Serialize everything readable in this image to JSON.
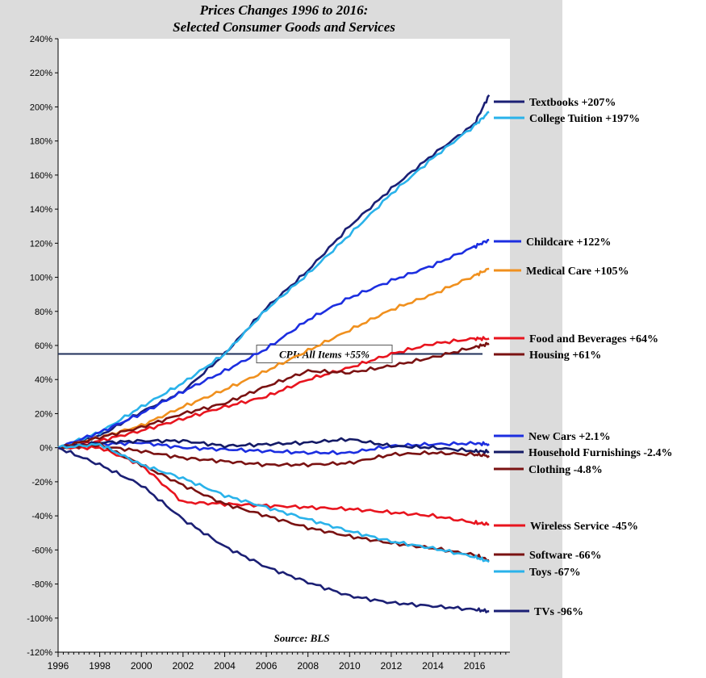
{
  "chart_data": {
    "type": "line",
    "title_line1": "Prices Changes 1996 to 2016:",
    "title_line2": "Selected Consumer Goods and Services",
    "source": "Source: BLS",
    "xlabel": "",
    "ylabel": "",
    "xlim": [
      1996,
      2017.7
    ],
    "ylim": [
      -120,
      240
    ],
    "y_ticks": [
      240,
      220,
      200,
      180,
      160,
      140,
      120,
      100,
      80,
      60,
      40,
      20,
      0,
      -20,
      -40,
      -60,
      -80,
      -100,
      -120
    ],
    "y_tick_labels": [
      "240%",
      "220%",
      "200%",
      "180%",
      "160%",
      "140%",
      "120%",
      "100%",
      "80%",
      "60%",
      "40%",
      "20%",
      "0%",
      "-20%",
      "-40%",
      "-60%",
      "-80%",
      "-100%",
      "-120%"
    ],
    "x_ticks": [
      1996,
      1998,
      2000,
      2002,
      2004,
      2006,
      2008,
      2010,
      2012,
      2014,
      2016
    ],
    "x_tick_labels": [
      "1996",
      "1998",
      "2000",
      "2002",
      "2004",
      "2006",
      "2008",
      "2010",
      "2012",
      "2014",
      "2016"
    ],
    "reference_line": {
      "label": "CPI: All Items +55%",
      "value": 55,
      "color": "#1f2f5a"
    },
    "series": [
      {
        "name": "Textbooks",
        "label": "Textbooks +207%",
        "color": "#1b1f74",
        "x": [
          1996,
          1998,
          2000,
          2002,
          2004,
          2006,
          2008,
          2010,
          2012,
          2014,
          2016,
          2016.7
        ],
        "y": [
          0,
          7,
          21,
          33,
          55,
          82,
          104,
          130,
          152,
          172,
          190,
          207
        ]
      },
      {
        "name": "College Tuition",
        "label": "College Tuition +197%",
        "color": "#29b2ea",
        "x": [
          1996,
          1998,
          2000,
          2002,
          2004,
          2006,
          2008,
          2010,
          2012,
          2014,
          2016,
          2016.7
        ],
        "y": [
          0,
          9,
          24,
          38,
          55,
          81,
          102,
          125,
          149,
          170,
          189,
          197
        ]
      },
      {
        "name": "Childcare",
        "label": "Childcare +122%",
        "color": "#1c2ee0",
        "x": [
          1996,
          1998,
          2000,
          2002,
          2004,
          2006,
          2008,
          2010,
          2012,
          2014,
          2016,
          2016.7
        ],
        "y": [
          0,
          9,
          20,
          33,
          45,
          58,
          75,
          88,
          98,
          107,
          118,
          122
        ]
      },
      {
        "name": "Medical Care",
        "label": "Medical Care +105%",
        "color": "#f0901e",
        "x": [
          1996,
          1998,
          2000,
          2002,
          2004,
          2006,
          2008,
          2010,
          2012,
          2014,
          2016,
          2016.7
        ],
        "y": [
          0,
          6,
          13,
          24,
          34,
          45,
          57,
          69,
          81,
          90,
          101,
          105
        ]
      },
      {
        "name": "Food and Beverages",
        "label": "Food and Beverages +64%",
        "color": "#e8141e",
        "x": [
          1996,
          1998,
          2000,
          2002,
          2004,
          2006,
          2008,
          2010,
          2012,
          2014,
          2016,
          2016.7
        ],
        "y": [
          0,
          4,
          10,
          17,
          24,
          30,
          40,
          47,
          55,
          61,
          64,
          64
        ]
      },
      {
        "name": "Housing",
        "label": "Housing +61%",
        "color": "#7a1212",
        "x": [
          1996,
          1998,
          2000,
          2002,
          2004,
          2006,
          2008,
          2010,
          2012,
          2014,
          2016,
          2016.7
        ],
        "y": [
          0,
          6,
          12,
          20,
          26,
          36,
          45,
          44,
          48,
          53,
          59,
          61
        ]
      },
      {
        "name": "New Cars",
        "label": "New Cars +2.1%",
        "color": "#1c2ee0",
        "x": [
          1996,
          1998,
          2000,
          2002,
          2004,
          2006,
          2008,
          2010,
          2012,
          2014,
          2016,
          2016.7
        ],
        "y": [
          0,
          2,
          3,
          0,
          -1,
          -2,
          -3,
          -3,
          1,
          2,
          2.5,
          2.1
        ]
      },
      {
        "name": "Household Furnishings",
        "label": "Household Furnishings -2.4%",
        "color": "#141a66",
        "x": [
          1996,
          1998,
          2000,
          2002,
          2004,
          2006,
          2008,
          2010,
          2012,
          2014,
          2016,
          2016.7
        ],
        "y": [
          0,
          3,
          4,
          4,
          1,
          2,
          3,
          5,
          1,
          0,
          -2,
          -2.4
        ]
      },
      {
        "name": "Clothing",
        "label": "Clothing -4.8%",
        "color": "#7a1212",
        "x": [
          1996,
          1998,
          2000,
          2002,
          2004,
          2006,
          2008,
          2010,
          2012,
          2014,
          2016,
          2016.7
        ],
        "y": [
          0,
          1,
          -2,
          -6,
          -8,
          -10,
          -10,
          -9,
          -4,
          -3,
          -4,
          -4.8
        ]
      },
      {
        "name": "Wireless Service",
        "label": "Wireless Service -45%",
        "color": "#e8141e",
        "x": [
          1996,
          1998,
          2000,
          2002,
          2004,
          2006,
          2008,
          2010,
          2012,
          2014,
          2016,
          2016.7
        ],
        "y": [
          0,
          0,
          -10,
          -32,
          -33,
          -34,
          -35,
          -36,
          -38,
          -40,
          -44,
          -45
        ]
      },
      {
        "name": "Software",
        "label": "Software -66%",
        "color": "#7a1212",
        "x": [
          1996,
          1998,
          2000,
          2002,
          2004,
          2006,
          2008,
          2010,
          2012,
          2014,
          2016,
          2016.7
        ],
        "y": [
          0,
          2,
          -10,
          -22,
          -33,
          -40,
          -47,
          -52,
          -56,
          -59,
          -63,
          -66
        ]
      },
      {
        "name": "Toys",
        "label": "Toys -67%",
        "color": "#29b2ea",
        "x": [
          1996,
          1998,
          2000,
          2002,
          2004,
          2006,
          2008,
          2010,
          2012,
          2014,
          2016,
          2016.7
        ],
        "y": [
          0,
          2,
          -10,
          -18,
          -28,
          -35,
          -42,
          -49,
          -55,
          -59,
          -64,
          -67
        ]
      },
      {
        "name": "TVs",
        "label": "TVs -96%",
        "color": "#1b1f74",
        "x": [
          1996,
          1998,
          2000,
          2002,
          2004,
          2006,
          2008,
          2010,
          2012,
          2014,
          2016,
          2016.7
        ],
        "y": [
          0,
          -10,
          -22,
          -42,
          -58,
          -70,
          -79,
          -87,
          -91,
          -93,
          -95,
          -96
        ]
      }
    ]
  }
}
